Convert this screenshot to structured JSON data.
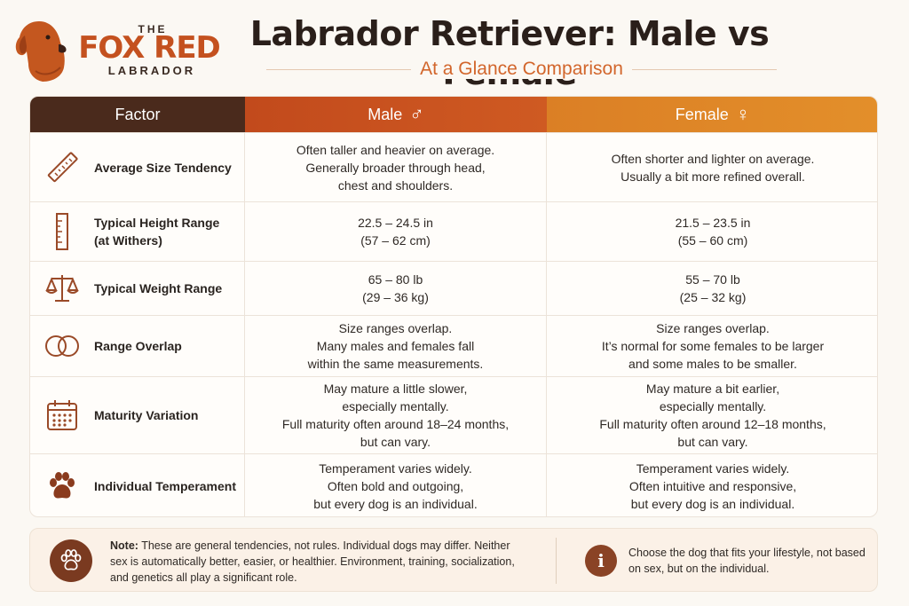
{
  "logo": {
    "top": "THE",
    "main": "FOX RED",
    "bottom": "LABRADOR"
  },
  "title": "Labrador Retriever: Male vs Female",
  "subtitle": "At a Glance Comparison",
  "colors": {
    "accent": "#c4511f",
    "header_factor": "#4a2a1c",
    "header_male": "#c24a1c",
    "header_female": "#e38f2a"
  },
  "header": {
    "factor": "Factor",
    "male": "Male",
    "male_symbol": "♂",
    "female": "Female",
    "female_symbol": "♀"
  },
  "rows": [
    {
      "icon": "ruler-icon",
      "factor": [
        "Average Size Tendency"
      ],
      "male": [
        "Often taller and heavier on average.",
        "Generally broader through head,",
        "chest and shoulders."
      ],
      "female": [
        "Often shorter and lighter on average.",
        "Usually a bit more refined overall."
      ]
    },
    {
      "icon": "height-ruler-icon",
      "factor": [
        "Typical Height Range",
        "(at Withers)"
      ],
      "male": [
        "22.5 – 24.5 in",
        "(57 – 62 cm)"
      ],
      "female": [
        "21.5 – 23.5 in",
        "(55 – 60 cm)"
      ]
    },
    {
      "icon": "scale-icon",
      "factor": [
        "Typical Weight Range"
      ],
      "male": [
        "65 – 80 lb",
        "(29 – 36 kg)"
      ],
      "female": [
        "55 – 70 lb",
        "(25 – 32 kg)"
      ]
    },
    {
      "icon": "overlap-circles-icon",
      "factor": [
        "Range Overlap"
      ],
      "male": [
        "Size ranges overlap.",
        "Many males and females fall",
        "within the same measurements."
      ],
      "female": [
        "Size ranges overlap.",
        "It’s normal for some females to be larger",
        "and some males to be smaller."
      ]
    },
    {
      "icon": "calendar-icon",
      "factor": [
        "Maturity Variation"
      ],
      "male": [
        "May mature a little slower,",
        "especially mentally.",
        "Full maturity often around 18–24 months,",
        "but can vary."
      ],
      "female": [
        "May mature a bit earlier,",
        "especially mentally.",
        "Full maturity often around 12–18 months,",
        "but can vary."
      ]
    },
    {
      "icon": "paw-icon",
      "factor": [
        "Individual Temperament"
      ],
      "male": [
        "Temperament varies widely.",
        "Often bold and outgoing,",
        "but every dog is an individual."
      ],
      "female": [
        "Temperament varies widely.",
        "Often intuitive and responsive,",
        "but every dog is an individual."
      ]
    }
  ],
  "note": {
    "label": "Note:",
    "text": " These are general tendencies, not rules. Individual dogs may differ. Neither sex is automatically better, easier, or healthier.  Environment, training, socialization, and genetics all play a significant role.",
    "info_glyph": "i",
    "tip": "Choose the dog that fits your lifestyle, not based on sex, but on the individual."
  }
}
